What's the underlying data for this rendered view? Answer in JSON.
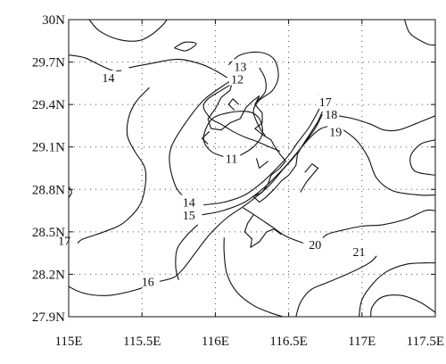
{
  "chart_data": {
    "type": "contour-map",
    "xlim": [
      115,
      117.5
    ],
    "ylim": [
      27.9,
      30
    ],
    "x_ticks": [
      {
        "value": 115,
        "label": "115E"
      },
      {
        "value": 115.5,
        "label": "115.5E"
      },
      {
        "value": 116,
        "label": "116E"
      },
      {
        "value": 116.5,
        "label": "116.5E"
      },
      {
        "value": 117,
        "label": "117E"
      },
      {
        "value": 117.5,
        "label": "117.5E"
      }
    ],
    "y_ticks": [
      {
        "value": 27.9,
        "label": "27.9N"
      },
      {
        "value": 28.2,
        "label": "28.2N"
      },
      {
        "value": 28.5,
        "label": "28.5N"
      },
      {
        "value": 28.8,
        "label": "28.8N"
      },
      {
        "value": 29.1,
        "label": "29.1N"
      },
      {
        "value": 29.4,
        "label": "29.4N"
      },
      {
        "value": 29.7,
        "label": "29.7N"
      },
      {
        "value": 30,
        "label": "30N"
      }
    ],
    "grid": "dotted",
    "contour_labels": [
      {
        "text": "13",
        "lon": 116.17,
        "lat": 29.67
      },
      {
        "text": "12",
        "lon": 116.15,
        "lat": 29.58
      },
      {
        "text": "14",
        "lon": 115.27,
        "lat": 29.59
      },
      {
        "text": "17",
        "lon": 116.75,
        "lat": 29.42
      },
      {
        "text": "18",
        "lon": 116.79,
        "lat": 29.33
      },
      {
        "text": "19",
        "lon": 116.82,
        "lat": 29.21
      },
      {
        "text": "11",
        "lon": 116.11,
        "lat": 29.02
      },
      {
        "text": "14",
        "lon": 115.82,
        "lat": 28.71
      },
      {
        "text": "15",
        "lon": 115.82,
        "lat": 28.62
      },
      {
        "text": "17",
        "lon": 114.97,
        "lat": 28.44
      },
      {
        "text": "20",
        "lon": 116.68,
        "lat": 28.41
      },
      {
        "text": "21",
        "lon": 116.98,
        "lat": 28.36
      },
      {
        "text": "16",
        "lon": 115.54,
        "lat": 28.15
      }
    ],
    "contours": [
      {
        "points": [
          [
            115.14,
            30.0
          ],
          [
            115.21,
            29.92
          ],
          [
            115.34,
            29.86
          ],
          [
            115.47,
            29.85
          ],
          [
            115.56,
            29.89
          ],
          [
            115.64,
            29.96
          ],
          [
            115.67,
            30.0
          ]
        ]
      },
      {
        "points": [
          [
            115.0,
            29.75
          ],
          [
            115.11,
            29.73
          ],
          [
            115.21,
            29.68
          ],
          [
            115.3,
            29.64
          ],
          [
            115.36,
            29.64
          ]
        ]
      },
      {
        "points": [
          [
            115.41,
            29.66
          ],
          [
            115.56,
            29.69
          ],
          [
            115.74,
            29.72
          ],
          [
            115.89,
            29.69
          ],
          [
            116.0,
            29.64
          ],
          [
            116.08,
            29.59
          ]
        ]
      },
      {
        "points": [
          [
            116.09,
            29.68
          ],
          [
            116.17,
            29.75
          ],
          [
            116.3,
            29.77
          ],
          [
            116.4,
            29.72
          ],
          [
            116.43,
            29.6
          ],
          [
            116.39,
            29.5
          ],
          [
            116.3,
            29.43
          ],
          [
            116.26,
            29.35
          ],
          [
            116.3,
            29.24
          ],
          [
            116.34,
            29.18
          ]
        ]
      },
      {
        "points": [
          [
            116.12,
            29.55
          ],
          [
            116.04,
            29.5
          ],
          [
            115.95,
            29.44
          ],
          [
            115.92,
            29.38
          ],
          [
            115.97,
            29.3
          ],
          [
            116.04,
            29.26
          ],
          [
            116.12,
            29.21
          ],
          [
            116.2,
            29.17
          ],
          [
            116.28,
            29.14
          ],
          [
            116.37,
            29.1
          ],
          [
            116.44,
            29.07
          ]
        ]
      },
      {
        "points": [
          [
            116.3,
            29.66
          ],
          [
            116.34,
            29.58
          ],
          [
            116.34,
            29.49
          ],
          [
            116.28,
            29.42
          ]
        ]
      },
      {
        "points": [
          [
            116.06,
            29.03
          ],
          [
            115.97,
            29.07
          ],
          [
            115.92,
            29.16
          ],
          [
            115.97,
            29.29
          ],
          [
            116.08,
            29.34
          ],
          [
            116.22,
            29.35
          ],
          [
            116.3,
            29.3
          ],
          [
            116.32,
            29.19
          ],
          [
            116.26,
            29.1
          ],
          [
            116.17,
            29.04
          ]
        ]
      },
      {
        "points": [
          [
            115.79,
            28.74
          ],
          [
            115.73,
            28.82
          ],
          [
            115.69,
            28.97
          ],
          [
            115.7,
            29.1
          ],
          [
            115.79,
            29.26
          ],
          [
            115.92,
            29.43
          ],
          [
            116.05,
            29.53
          ],
          [
            116.11,
            29.57
          ]
        ]
      },
      {
        "points": [
          [
            115.92,
            28.69
          ],
          [
            116.06,
            28.71
          ],
          [
            116.2,
            28.76
          ],
          [
            116.32,
            28.85
          ],
          [
            116.41,
            28.94
          ],
          [
            116.5,
            29.04
          ],
          [
            116.56,
            29.13
          ],
          [
            116.64,
            29.24
          ],
          [
            116.71,
            29.37
          ]
        ]
      },
      {
        "points": [
          [
            115.91,
            28.62
          ],
          [
            116.05,
            28.65
          ],
          [
            116.2,
            28.71
          ],
          [
            116.33,
            28.81
          ],
          [
            116.43,
            28.91
          ],
          [
            116.53,
            29.02
          ],
          [
            116.61,
            29.13
          ],
          [
            116.68,
            29.23
          ],
          [
            116.73,
            29.33
          ]
        ]
      },
      {
        "points": [
          [
            115.88,
            28.55
          ],
          [
            115.81,
            28.48
          ],
          [
            115.74,
            28.38
          ],
          [
            115.73,
            28.25
          ],
          [
            115.75,
            28.16
          ]
        ]
      },
      {
        "points": [
          [
            115.55,
            29.52
          ],
          [
            115.46,
            29.42
          ],
          [
            115.41,
            29.31
          ],
          [
            115.4,
            29.18
          ],
          [
            115.45,
            29.07
          ],
          [
            115.52,
            28.95
          ],
          [
            115.52,
            28.81
          ],
          [
            115.48,
            28.68
          ],
          [
            115.37,
            28.56
          ],
          [
            115.24,
            28.5
          ],
          [
            115.1,
            28.45
          ],
          [
            115.06,
            28.42
          ]
        ]
      },
      {
        "points": [
          [
            114.94,
            28.42
          ],
          [
            114.86,
            28.38
          ],
          [
            114.86,
            28.27
          ],
          [
            114.94,
            28.16
          ],
          [
            115.09,
            28.07
          ],
          [
            115.27,
            28.05
          ],
          [
            115.46,
            28.09
          ],
          [
            115.53,
            28.12
          ]
        ]
      },
      {
        "points": [
          [
            115.62,
            28.15
          ],
          [
            115.72,
            28.18
          ],
          [
            115.79,
            28.25
          ],
          [
            115.87,
            28.36
          ],
          [
            115.96,
            28.48
          ],
          [
            116.08,
            28.6
          ],
          [
            116.22,
            28.7
          ],
          [
            116.36,
            28.82
          ],
          [
            116.46,
            28.94
          ],
          [
            116.55,
            29.05
          ],
          [
            116.64,
            29.16
          ],
          [
            116.72,
            29.23
          ],
          [
            116.8,
            29.25
          ]
        ]
      },
      {
        "points": [
          [
            116.7,
            29.47
          ],
          [
            116.77,
            29.42
          ]
        ]
      },
      {
        "points": [
          [
            116.84,
            29.32
          ],
          [
            116.94,
            29.3
          ],
          [
            117.06,
            29.26
          ],
          [
            117.15,
            29.22
          ],
          [
            117.25,
            29.22
          ],
          [
            117.38,
            29.27
          ],
          [
            117.5,
            29.32
          ]
        ]
      },
      {
        "points": [
          [
            116.86,
            29.23
          ],
          [
            116.96,
            29.15
          ],
          [
            117.04,
            29.03
          ],
          [
            117.1,
            28.88
          ],
          [
            117.21,
            28.79
          ],
          [
            117.39,
            28.76
          ],
          [
            117.5,
            28.76
          ]
        ]
      },
      {
        "points": [
          [
            116.7,
            28.42
          ],
          [
            116.76,
            28.48
          ],
          [
            116.86,
            28.51
          ],
          [
            117.0,
            28.54
          ],
          [
            117.14,
            28.55
          ],
          [
            117.3,
            28.59
          ],
          [
            117.43,
            28.65
          ],
          [
            117.5,
            28.65
          ]
        ]
      },
      {
        "points": [
          [
            116.6,
            28.42
          ],
          [
            116.48,
            28.47
          ],
          [
            116.38,
            28.54
          ],
          [
            116.28,
            28.61
          ],
          [
            116.19,
            28.67
          ]
        ]
      },
      {
        "points": [
          [
            116.06,
            28.46
          ],
          [
            116.06,
            28.35
          ],
          [
            116.08,
            28.2
          ],
          [
            116.15,
            28.07
          ],
          [
            116.26,
            27.98
          ],
          [
            116.37,
            27.93
          ],
          [
            116.46,
            27.9
          ]
        ]
      },
      {
        "points": [
          [
            116.55,
            27.9
          ],
          [
            116.58,
            28.0
          ],
          [
            116.65,
            28.09
          ],
          [
            116.76,
            28.14
          ],
          [
            116.92,
            28.21
          ],
          [
            117.05,
            28.28
          ],
          [
            117.1,
            28.33
          ]
        ]
      },
      {
        "points": [
          [
            116.98,
            27.9
          ],
          [
            117.0,
            28.02
          ],
          [
            117.08,
            28.14
          ],
          [
            117.17,
            28.22
          ],
          [
            117.3,
            28.27
          ],
          [
            117.43,
            28.28
          ],
          [
            117.5,
            28.28
          ]
        ]
      },
      {
        "points": [
          [
            117.5,
            27.93
          ],
          [
            117.4,
            28.0
          ],
          [
            117.27,
            28.05
          ],
          [
            117.14,
            28.04
          ],
          [
            117.07,
            27.97
          ],
          [
            117.06,
            27.9
          ]
        ]
      },
      {
        "points": [
          [
            117.29,
            30.0
          ],
          [
            117.33,
            29.9
          ],
          [
            117.44,
            29.83
          ],
          [
            117.5,
            29.82
          ]
        ]
      },
      {
        "points": [
          [
            117.5,
            29.15
          ],
          [
            117.4,
            29.12
          ],
          [
            117.33,
            29.03
          ],
          [
            117.36,
            28.93
          ],
          [
            117.5,
            28.9
          ]
        ]
      },
      {
        "points": [
          [
            115.72,
            29.8
          ],
          [
            115.79,
            29.84
          ],
          [
            115.87,
            29.83
          ],
          [
            115.8,
            29.78
          ],
          [
            115.72,
            29.8
          ]
        ]
      },
      {
        "points": [
          [
            115.0,
            28.74
          ],
          [
            115.02,
            28.78
          ],
          [
            115.0,
            28.82
          ]
        ]
      }
    ],
    "coastlines": [
      {
        "points": [
          [
            116.12,
            29.7
          ],
          [
            116.16,
            29.63
          ],
          [
            116.12,
            29.57
          ],
          [
            116.1,
            29.5
          ],
          [
            116.04,
            29.45
          ],
          [
            116.0,
            29.37
          ],
          [
            115.95,
            29.3
          ],
          [
            115.97,
            29.23
          ],
          [
            116.04,
            29.22
          ],
          [
            116.1,
            29.27
          ],
          [
            116.17,
            29.3
          ],
          [
            116.21,
            29.38
          ],
          [
            116.26,
            29.43
          ],
          [
            116.3,
            29.46
          ],
          [
            116.27,
            29.4
          ],
          [
            116.32,
            29.34
          ],
          [
            116.32,
            29.27
          ],
          [
            116.27,
            29.23
          ],
          [
            116.33,
            29.18
          ],
          [
            116.38,
            29.15
          ],
          [
            116.4,
            29.11
          ],
          [
            116.44,
            29.05
          ],
          [
            116.48,
            29.0
          ],
          [
            116.44,
            28.95
          ],
          [
            116.38,
            28.9
          ],
          [
            116.36,
            28.84
          ],
          [
            116.32,
            28.78
          ],
          [
            116.26,
            28.75
          ],
          [
            116.3,
            28.71
          ],
          [
            116.34,
            28.74
          ],
          [
            116.4,
            28.8
          ],
          [
            116.45,
            28.86
          ],
          [
            116.5,
            28.9
          ],
          [
            116.55,
            28.97
          ],
          [
            116.56,
            29.05
          ],
          [
            116.6,
            29.12
          ],
          [
            116.65,
            29.2
          ],
          [
            116.7,
            29.28
          ],
          [
            116.73,
            29.35
          ]
        ]
      },
      {
        "points": [
          [
            116.58,
            28.78
          ],
          [
            116.62,
            28.85
          ],
          [
            116.66,
            28.9
          ],
          [
            116.7,
            28.95
          ],
          [
            116.66,
            28.98
          ],
          [
            116.61,
            28.92
          ]
        ]
      },
      {
        "points": [
          [
            116.26,
            28.62
          ],
          [
            116.22,
            28.56
          ],
          [
            116.2,
            28.5
          ],
          [
            116.25,
            28.45
          ],
          [
            116.24,
            28.39
          ],
          [
            116.3,
            28.43
          ],
          [
            116.35,
            28.5
          ],
          [
            116.4,
            28.52
          ],
          [
            116.45,
            28.48
          ]
        ]
      },
      {
        "points": [
          [
            115.96,
            29.21
          ],
          [
            115.91,
            29.16
          ],
          [
            115.95,
            29.12
          ]
        ]
      },
      {
        "points": [
          [
            116.16,
            29.4
          ],
          [
            116.12,
            29.44
          ],
          [
            116.09,
            29.4
          ],
          [
            116.13,
            29.36
          ]
        ]
      },
      {
        "points": [
          [
            116.36,
            29.0
          ],
          [
            116.3,
            28.95
          ],
          [
            116.28,
            29.02
          ]
        ]
      }
    ]
  }
}
